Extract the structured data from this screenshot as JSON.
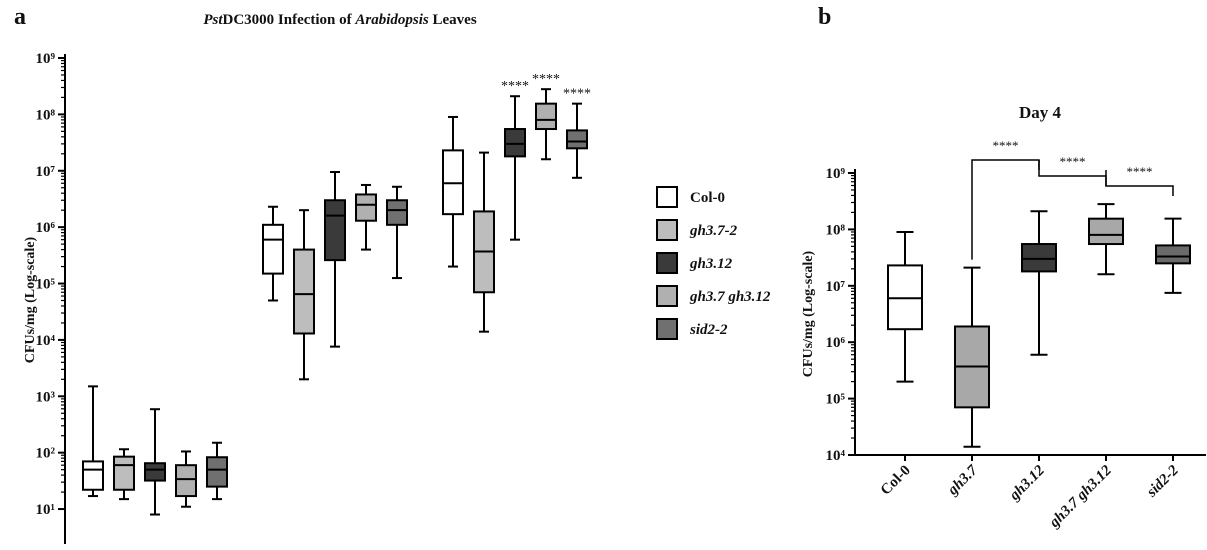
{
  "chart_data": [
    {
      "type": "box",
      "panel": "a",
      "title": [
        "Pst",
        "DC3000 Infection of ",
        "Arabidopsis",
        " Leaves"
      ],
      "y_label": "CFUs/mg  (Log-scale)",
      "log_scale": true,
      "legend": "right",
      "categories": [
        null,
        null,
        null
      ],
      "ylim": [
        2.4,
        1000000000
      ],
      "yticks": [
        {
          "value": 10,
          "label": "10¹"
        },
        {
          "value": 100,
          "label": "10²"
        },
        {
          "value": 1000,
          "label": "10³"
        },
        {
          "value": 10000,
          "label": "10⁴"
        },
        {
          "value": 100000,
          "label": "10⁵"
        },
        {
          "value": 1000000,
          "label": "10⁶"
        },
        {
          "value": 10000000,
          "label": "10⁷"
        },
        {
          "value": 100000000,
          "label": "10⁸"
        },
        {
          "value": 1000000000,
          "label": "10⁹"
        }
      ],
      "series": [
        {
          "name": "Col-0",
          "color": "#ffffff",
          "stats": [
            {
              "min": 17,
              "q1": 22,
              "median": 50,
              "q3": 70,
              "max": 1500
            },
            {
              "min": 50000,
              "q1": 150000,
              "median": 600000,
              "q3": 1100000,
              "max": 2300000
            },
            {
              "min": 200000,
              "q1": 1700000,
              "median": 6000000,
              "q3": 23000000,
              "max": 90000000
            }
          ]
        },
        {
          "name": "gh3.7-2",
          "color": "#bdbdbd",
          "stats": [
            {
              "min": 15,
              "q1": 22,
              "median": 60,
              "q3": 85,
              "max": 115
            },
            {
              "min": 2000,
              "q1": 13000,
              "median": 65000,
              "q3": 400000,
              "max": 2000000
            },
            {
              "min": 14000,
              "q1": 70000,
              "median": 370000,
              "q3": 1900000,
              "max": 21000000
            }
          ]
        },
        {
          "name": "gh3.12",
          "color": "#3a3a3a",
          "stats": [
            {
              "min": 8,
              "q1": 32,
              "median": 50,
              "q3": 65,
              "max": 590
            },
            {
              "min": 7600,
              "q1": 260000,
              "median": 1600000,
              "q3": 3000000,
              "max": 9500000
            },
            {
              "min": 600000,
              "q1": 18000000,
              "median": 30000000,
              "q3": 55000000,
              "max": 210000000
            }
          ]
        },
        {
          "name": "gh3.7 gh3.12",
          "color": "#b0b0b0",
          "stats": [
            {
              "min": 11,
              "q1": 17,
              "median": 34,
              "q3": 60,
              "max": 105
            },
            {
              "min": 400000,
              "q1": 1300000,
              "median": 2500000,
              "q3": 3800000,
              "max": 5600000
            },
            {
              "min": 16000000,
              "q1": 55000000,
              "median": 80000000,
              "q3": 155000000,
              "max": 280000000
            }
          ]
        },
        {
          "name": "sid2-2",
          "color": "#707070",
          "stats": [
            {
              "min": 15,
              "q1": 25,
              "median": 50,
              "q3": 83,
              "max": 150
            },
            {
              "min": 125000,
              "q1": 1100000,
              "median": 2000000,
              "q3": 3000000,
              "max": 5200000
            },
            {
              "min": 7500000,
              "q1": 25000000,
              "median": 33000000,
              "q3": 52000000,
              "max": 155000000
            }
          ]
        }
      ],
      "annotations": [
        "****",
        "****",
        "****"
      ]
    },
    {
      "type": "box",
      "panel": "b",
      "title": "Day 4",
      "y_label": "CFUs/mg  (Log-scale)",
      "log_scale": true,
      "categories": [
        "Col-0",
        "gh3.7",
        "gh3.12",
        "gh3.7 gh3.12",
        "sid2-2"
      ],
      "colors": [
        "#ffffff",
        "#a8a8a8",
        "#3a3a3a",
        "#a8a8a8",
        "#6a6a6a"
      ],
      "ylim": [
        10000,
        1000000000
      ],
      "yticks": [
        {
          "value": 10000,
          "label": "10⁴"
        },
        {
          "value": 100000,
          "label": "10⁵"
        },
        {
          "value": 1000000,
          "label": "10⁶"
        },
        {
          "value": 10000000,
          "label": "10⁷"
        },
        {
          "value": 100000000,
          "label": "10⁸"
        },
        {
          "value": 1000000000,
          "label": "10⁹"
        }
      ],
      "stats": [
        {
          "min": 200000,
          "q1": 1700000,
          "median": 6000000,
          "q3": 23000000,
          "max": 90000000
        },
        {
          "min": 14000,
          "q1": 70000,
          "median": 370000,
          "q3": 1900000,
          "max": 21000000
        },
        {
          "min": 600000,
          "q1": 18000000,
          "median": 30000000,
          "q3": 55000000,
          "max": 210000000
        },
        {
          "min": 16000000,
          "q1": 55000000,
          "median": 80000000,
          "q3": 155000000,
          "max": 280000000
        },
        {
          "min": 7500000,
          "q1": 25000000,
          "median": 33000000,
          "q3": 52000000,
          "max": 155000000
        }
      ],
      "significance": [
        "****",
        "****",
        "****"
      ]
    }
  ]
}
